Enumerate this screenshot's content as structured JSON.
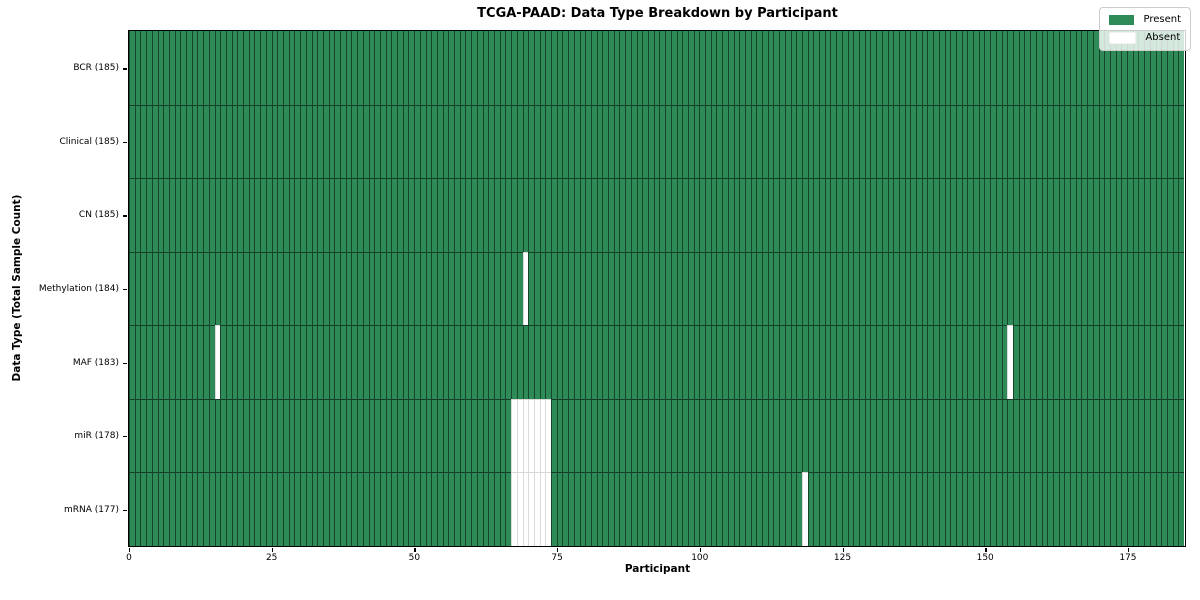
{
  "chart_data": {
    "type": "heatmap",
    "title": "TCGA-PAAD: Data Type Breakdown by Participant",
    "xlabel": "Participant",
    "ylabel": "Data Type (Total Sample Count)",
    "xlim": [
      0,
      185
    ],
    "n_participants": 185,
    "x_ticks": [
      0,
      25,
      50,
      75,
      100,
      125,
      150,
      175
    ],
    "grid": false,
    "legend": {
      "position": "upper right",
      "entries": [
        "Present",
        "Absent"
      ]
    },
    "colors": {
      "present": "#2e8b57",
      "absent": "#ffffff"
    },
    "rows": [
      {
        "label": "BCR (185)",
        "data_type": "BCR",
        "total_samples": 185,
        "absent_participants": []
      },
      {
        "label": "Clinical (185)",
        "data_type": "Clinical",
        "total_samples": 185,
        "absent_participants": []
      },
      {
        "label": "CN (185)",
        "data_type": "CN",
        "total_samples": 185,
        "absent_participants": []
      },
      {
        "label": "Methylation (184)",
        "data_type": "Methylation",
        "total_samples": 184,
        "absent_participants": [
          69
        ]
      },
      {
        "label": "MAF (183)",
        "data_type": "MAF",
        "total_samples": 183,
        "absent_participants": [
          15,
          154
        ]
      },
      {
        "label": "miR (178)",
        "data_type": "miR",
        "total_samples": 178,
        "absent_participants": [
          67,
          68,
          69,
          70,
          71,
          72,
          73
        ]
      },
      {
        "label": "mRNA (177)",
        "data_type": "mRNA",
        "total_samples": 177,
        "absent_participants": [
          67,
          68,
          69,
          70,
          71,
          72,
          73,
          118
        ]
      }
    ]
  }
}
